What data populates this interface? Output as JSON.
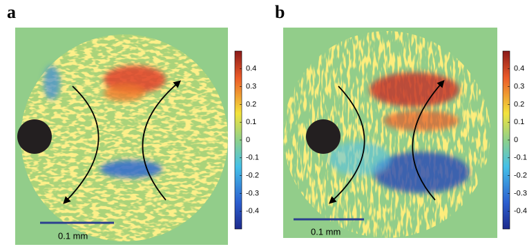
{
  "panels": [
    {
      "label": "a",
      "colorbar": {
        "lim": [
          -0.5,
          0.5
        ],
        "ticks": [
          0.4,
          0.3,
          0.2,
          0.1,
          0,
          -0.1,
          -0.2,
          -0.3,
          -0.4
        ]
      },
      "scale_bar": "0.1 mm"
    },
    {
      "label": "b",
      "colorbar": {
        "lim": [
          -0.5,
          0.5
        ],
        "ticks": [
          0.4,
          0.3,
          0.2,
          0.1,
          0,
          -0.1,
          -0.2,
          -0.3,
          -0.4
        ]
      },
      "scale_bar": "0.1 mm"
    }
  ]
}
